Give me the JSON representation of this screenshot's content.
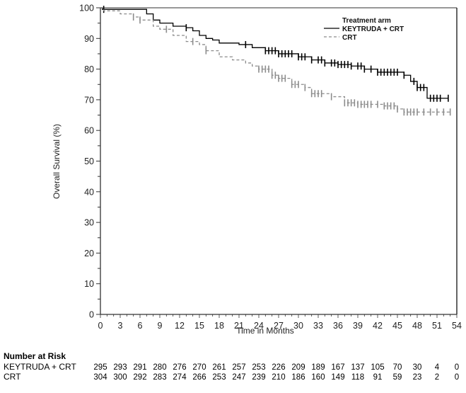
{
  "chart_data": {
    "type": "line",
    "subtype": "kaplan-meier",
    "title": "",
    "xlabel": "Time in Months",
    "ylabel": "Overall Survival (%)",
    "xlim": [
      0,
      54
    ],
    "ylim": [
      0,
      100
    ],
    "xticks": [
      0,
      3,
      6,
      9,
      12,
      15,
      18,
      21,
      24,
      27,
      30,
      33,
      36,
      39,
      42,
      45,
      48,
      51,
      54
    ],
    "yticks": [
      0,
      10,
      20,
      30,
      40,
      50,
      60,
      70,
      80,
      90,
      100
    ],
    "grid": false,
    "legend": {
      "title": "Treatment arm",
      "placement": "top-right",
      "entries": [
        {
          "label": "KEYTRUDA + CRT",
          "style": "solid",
          "color": "#000000"
        },
        {
          "label": "CRT",
          "style": "dashed",
          "color": "#8c8c8c"
        }
      ]
    },
    "series": [
      {
        "name": "KEYTRUDA + CRT",
        "color": "#000000",
        "style": "solid",
        "x": [
          0,
          0.3,
          6,
          7,
          8,
          9,
          11,
          13,
          14,
          15,
          16,
          17,
          18,
          21,
          23,
          25,
          27,
          30,
          32,
          34,
          36,
          38,
          40,
          42,
          46,
          47,
          48,
          49.5,
          52.7
        ],
        "y": [
          100,
          99.5,
          99.5,
          98,
          96,
          95,
          94,
          93.5,
          92.5,
          91,
          90,
          89.5,
          88.5,
          88,
          87,
          86,
          85,
          84,
          83,
          82,
          81.5,
          81,
          80,
          79,
          78,
          76,
          74,
          70.5,
          70.5
        ],
        "censor_x": [
          0.5,
          13,
          22,
          25,
          25.5,
          26,
          26.5,
          27,
          27.5,
          28,
          28.5,
          29,
          30,
          30.5,
          31,
          32,
          33,
          33.5,
          34,
          35,
          35.5,
          36,
          36.5,
          37,
          37.5,
          38,
          39,
          39.5,
          40,
          41,
          42,
          42.5,
          43,
          43.5,
          44,
          44.5,
          45,
          46,
          47.5,
          48,
          48.5,
          49,
          50,
          50.5,
          51,
          51.5,
          52.7
        ]
      },
      {
        "name": "CRT",
        "color": "#8c8c8c",
        "style": "dashed",
        "x": [
          0,
          0.5,
          3,
          5,
          6,
          8,
          9,
          11,
          13,
          15,
          16,
          18,
          20,
          22,
          23,
          24,
          26,
          27,
          29,
          31,
          32,
          35,
          37,
          39,
          43,
          45,
          46,
          53
        ],
        "y": [
          100,
          99,
          98,
          97,
          96,
          94,
          93,
          91,
          89,
          88,
          86,
          84,
          83,
          82,
          81,
          80,
          78,
          77,
          75,
          74,
          72,
          71,
          69,
          68.5,
          68,
          67,
          66,
          66
        ],
        "censor_x": [
          5,
          6,
          10,
          14,
          16,
          24,
          24.5,
          25,
          25.5,
          26,
          26.5,
          27,
          27.5,
          28,
          29,
          29.5,
          30,
          31,
          32,
          32.5,
          33,
          33.5,
          35,
          37,
          37.5,
          38,
          38.5,
          39,
          39.5,
          40,
          40.5,
          41,
          42,
          43,
          43.5,
          44,
          44.5,
          45,
          46,
          46.5,
          47,
          47.5,
          48,
          49,
          50,
          51,
          52,
          53
        ]
      }
    ],
    "number_at_risk": {
      "title": "Number at Risk",
      "times": [
        0,
        3,
        6,
        9,
        12,
        15,
        18,
        21,
        24,
        27,
        30,
        33,
        36,
        39,
        42,
        45,
        48,
        51,
        54
      ],
      "rows": [
        {
          "label": "KEYTRUDA + CRT",
          "values": [
            295,
            293,
            291,
            280,
            276,
            270,
            261,
            257,
            253,
            226,
            209,
            189,
            167,
            137,
            105,
            70,
            30,
            4,
            0
          ]
        },
        {
          "label": "CRT",
          "values": [
            304,
            300,
            292,
            283,
            274,
            266,
            253,
            247,
            239,
            210,
            186,
            160,
            149,
            118,
            91,
            59,
            23,
            2,
            0
          ]
        }
      ]
    }
  }
}
